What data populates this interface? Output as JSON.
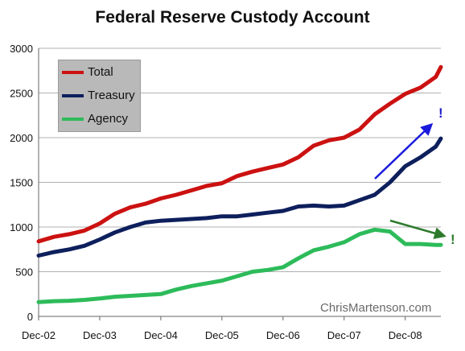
{
  "title": "Federal Reserve Custody Account",
  "watermark": "ChrisMartenson.com",
  "annotations": [
    {
      "text": "!",
      "color": "#2222cc"
    },
    {
      "text": "!",
      "color": "#2d7a2d"
    }
  ],
  "chart_data": {
    "type": "line",
    "title": "Federal Reserve Custody Account",
    "xlabel": "",
    "ylabel": "",
    "x_ticks": [
      "Dec-02",
      "Dec-03",
      "Dec-04",
      "Dec-05",
      "Dec-06",
      "Dec-07",
      "Dec-08"
    ],
    "x_domain": [
      "2002-12",
      "2009-07"
    ],
    "ylim": [
      0,
      3000
    ],
    "y_ticks": [
      0,
      500,
      1000,
      1500,
      2000,
      2500,
      3000
    ],
    "grid": "horizontal",
    "legend_position": "top-left",
    "series": [
      {
        "name": "Total",
        "color": "#cc1111",
        "points": [
          [
            "2002-12",
            840
          ],
          [
            "2003-03",
            890
          ],
          [
            "2003-06",
            920
          ],
          [
            "2003-09",
            960
          ],
          [
            "2003-12",
            1040
          ],
          [
            "2004-03",
            1150
          ],
          [
            "2004-06",
            1220
          ],
          [
            "2004-09",
            1260
          ],
          [
            "2004-12",
            1320
          ],
          [
            "2005-03",
            1360
          ],
          [
            "2005-06",
            1410
          ],
          [
            "2005-09",
            1460
          ],
          [
            "2005-12",
            1490
          ],
          [
            "2006-03",
            1570
          ],
          [
            "2006-06",
            1620
          ],
          [
            "2006-09",
            1660
          ],
          [
            "2006-12",
            1700
          ],
          [
            "2007-03",
            1780
          ],
          [
            "2007-06",
            1910
          ],
          [
            "2007-09",
            1970
          ],
          [
            "2007-12",
            2000
          ],
          [
            "2008-03",
            2090
          ],
          [
            "2008-06",
            2260
          ],
          [
            "2008-09",
            2380
          ],
          [
            "2008-12",
            2490
          ],
          [
            "2009-03",
            2560
          ],
          [
            "2009-06",
            2680
          ],
          [
            "2009-07",
            2790
          ]
        ]
      },
      {
        "name": "Treasury",
        "color": "#0d1f5c",
        "points": [
          [
            "2002-12",
            680
          ],
          [
            "2003-03",
            720
          ],
          [
            "2003-06",
            750
          ],
          [
            "2003-09",
            790
          ],
          [
            "2003-12",
            860
          ],
          [
            "2004-03",
            940
          ],
          [
            "2004-06",
            1000
          ],
          [
            "2004-09",
            1050
          ],
          [
            "2004-12",
            1070
          ],
          [
            "2005-03",
            1080
          ],
          [
            "2005-06",
            1090
          ],
          [
            "2005-09",
            1100
          ],
          [
            "2005-12",
            1120
          ],
          [
            "2006-03",
            1120
          ],
          [
            "2006-06",
            1140
          ],
          [
            "2006-09",
            1160
          ],
          [
            "2006-12",
            1180
          ],
          [
            "2007-03",
            1230
          ],
          [
            "2007-06",
            1240
          ],
          [
            "2007-09",
            1230
          ],
          [
            "2007-12",
            1240
          ],
          [
            "2008-03",
            1300
          ],
          [
            "2008-06",
            1360
          ],
          [
            "2008-09",
            1500
          ],
          [
            "2008-12",
            1680
          ],
          [
            "2009-03",
            1780
          ],
          [
            "2009-06",
            1900
          ],
          [
            "2009-07",
            1990
          ]
        ]
      },
      {
        "name": "Agency",
        "color": "#2dbb5a",
        "points": [
          [
            "2002-12",
            160
          ],
          [
            "2003-03",
            170
          ],
          [
            "2003-06",
            175
          ],
          [
            "2003-09",
            185
          ],
          [
            "2003-12",
            200
          ],
          [
            "2004-03",
            220
          ],
          [
            "2004-06",
            230
          ],
          [
            "2004-09",
            240
          ],
          [
            "2004-12",
            250
          ],
          [
            "2005-03",
            300
          ],
          [
            "2005-06",
            340
          ],
          [
            "2005-09",
            370
          ],
          [
            "2005-12",
            400
          ],
          [
            "2006-03",
            450
          ],
          [
            "2006-06",
            500
          ],
          [
            "2006-09",
            520
          ],
          [
            "2006-12",
            550
          ],
          [
            "2007-03",
            650
          ],
          [
            "2007-06",
            740
          ],
          [
            "2007-09",
            780
          ],
          [
            "2007-12",
            830
          ],
          [
            "2008-03",
            920
          ],
          [
            "2008-06",
            970
          ],
          [
            "2008-09",
            950
          ],
          [
            "2008-12",
            810
          ],
          [
            "2009-03",
            810
          ],
          [
            "2009-06",
            800
          ],
          [
            "2009-07",
            800
          ]
        ]
      }
    ]
  }
}
